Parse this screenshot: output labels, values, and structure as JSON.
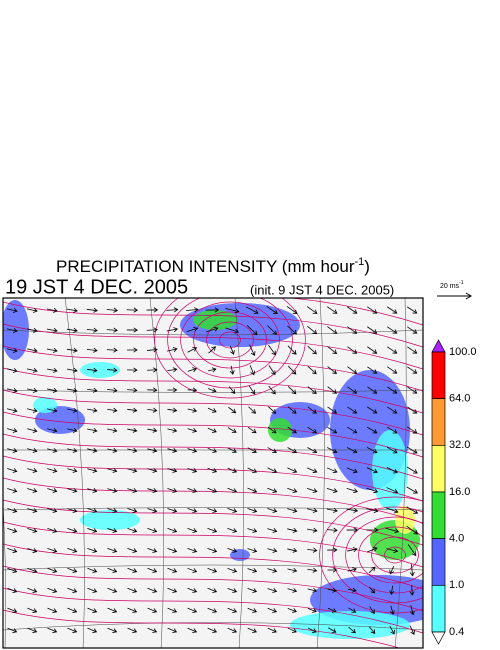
{
  "header": {
    "title_main": "PRECIPITATION INTENSITY (mm hour",
    "title_sup": "-1",
    "title_end": ")",
    "valid_time": "19 JST 4 DEC. 2005",
    "init_time": "(init. 9 JST 4 DEC. 2005)"
  },
  "wind_key": {
    "label_main": "20 ms",
    "label_sup": "-1"
  },
  "legend": {
    "labels": [
      "100.0",
      "64.0",
      "32.0",
      "16.0",
      "4.0",
      "1.0",
      "0.4"
    ],
    "colors": [
      "#ff0000",
      "#ff9933",
      "#ffff66",
      "#33dd33",
      "#5566ff",
      "#55ffff"
    ],
    "over_color": "#aa22ff",
    "under_color": "#ffffff"
  }
}
